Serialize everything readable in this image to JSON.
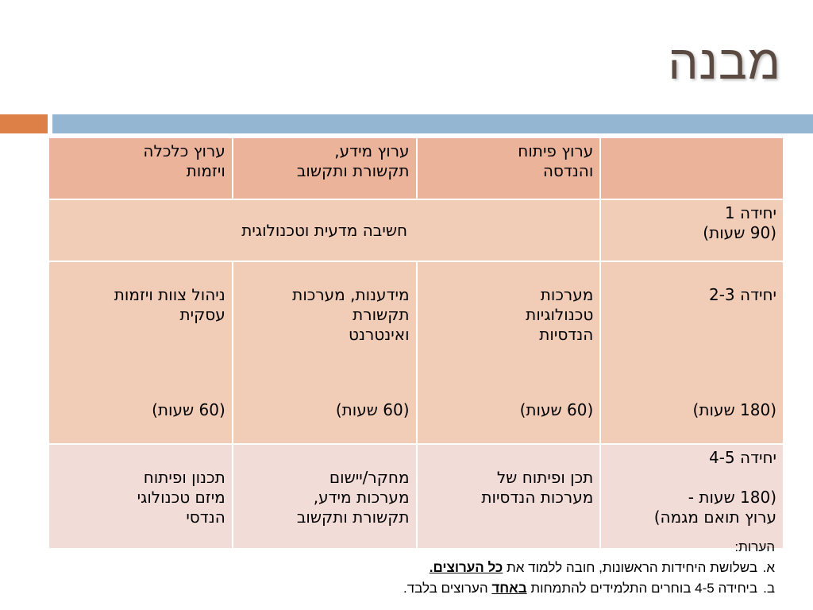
{
  "title": "מבנה",
  "colors": {
    "accent_orange": "#dd8047",
    "accent_blue": "#94b6d2",
    "header_fill": "#eab39a",
    "row_fill": "#f1ccb6",
    "row_last_fill": "#f2dcd8"
  },
  "table": {
    "header": {
      "c0": "",
      "c1": "ערוץ פיתוח\nוהנדסה",
      "c2": "ערוץ מידע,\nתקשורת ותקשוב",
      "c3": "ערוץ כלכלה\nויזמות"
    },
    "unit1": {
      "label": "יחידה 1\n(90 שעות)",
      "merged": "חשיבה מדעית וטכנולוגית"
    },
    "unit23": {
      "label_top": "יחידה 2-3",
      "label_bottom": "(180 שעות)",
      "c1_top": "מערכות\nטכנולוגיות\nהנדסיות",
      "c1_bottom": "(60 שעות)",
      "c2_top": "מידענות, מערכות\nתקשורת\nואינטרנט",
      "c2_bottom": "(60 שעות)",
      "c3_top": "ניהול צוות ויזמות\nעסקית",
      "c3_bottom": "(60 שעות)"
    },
    "unit45": {
      "label": "יחידה 4-5\n\n(180 שעות -\nערוץ תואם מגמה)",
      "c1": "\nתכן ופיתוח של\nמערכות הנדסיות",
      "c2": "\nמחקר/יישום\nמערכות מידע,\nתקשורת ותקשוב",
      "c3": "\nתכנון ופיתוח\nמיזם טכנולוגי\nהנדסי"
    }
  },
  "notes": {
    "heading": "הערות:",
    "a_marker": "א.",
    "a_text": "בשלושת היחידות הראשונות, חובה ללמוד את ",
    "a_emph": "כל הערוצים.",
    "b_marker": "ב.",
    "b_text1": "ביחידה 4-5 בוחרים התלמידים להתמחות ",
    "b_emph": "באחד",
    "b_text2": " הערוצים בלבד."
  }
}
